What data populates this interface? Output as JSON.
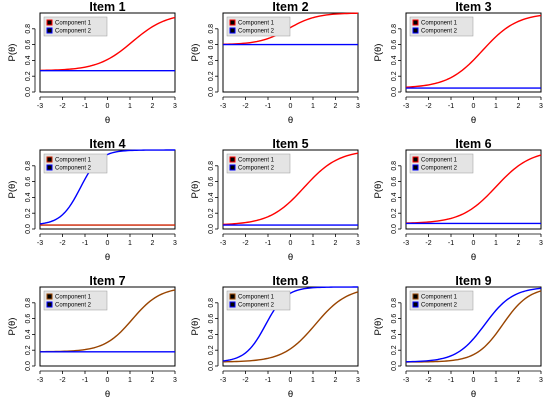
{
  "chart_data": [
    {
      "type": "line",
      "title": "Item  1",
      "xlabel": "θ",
      "ylabel": "P(θ)",
      "xlim": [
        -3,
        3
      ],
      "ylim": [
        0,
        1
      ],
      "xticks": [
        "-3",
        "-2",
        "-1",
        "0",
        "1",
        "2",
        "3"
      ],
      "yticks": [
        "0.0",
        "0.2",
        "0.4",
        "0.6",
        "0.8"
      ],
      "legend": "top-left",
      "series": [
        {
          "name": "Component 1",
          "color": "#ff0000",
          "lower": 0.27,
          "upper": 1.0,
          "a": 1.3,
          "b": 1.1
        },
        {
          "name": "Component 2",
          "color": "#0000ff",
          "lower": 0.27,
          "upper": 0.27,
          "a": 0,
          "b": 0
        }
      ]
    },
    {
      "type": "line",
      "title": "Item  2",
      "xlabel": "θ",
      "ylabel": "P(θ)",
      "xlim": [
        -3,
        3
      ],
      "ylim": [
        0,
        1
      ],
      "xticks": [
        "-3",
        "-2",
        "-1",
        "0",
        "1",
        "2",
        "3"
      ],
      "yticks": [
        "0.0",
        "0.2",
        "0.4",
        "0.6",
        "0.8"
      ],
      "legend": "top-left",
      "series": [
        {
          "name": "Component 1",
          "color": "#ff0000",
          "lower": 0.6,
          "upper": 1.0,
          "a": 1.6,
          "b": -0.1
        },
        {
          "name": "Component 2",
          "color": "#0000ff",
          "lower": 0.6,
          "upper": 0.6,
          "a": 0,
          "b": 0
        }
      ]
    },
    {
      "type": "line",
      "title": "Item  3",
      "xlabel": "θ",
      "ylabel": "P(θ)",
      "xlim": [
        -3,
        3
      ],
      "ylim": [
        0,
        1
      ],
      "xticks": [
        "-3",
        "-2",
        "-1",
        "0",
        "1",
        "2",
        "3"
      ],
      "yticks": [
        "0.0",
        "0.2",
        "0.4",
        "0.6",
        "0.8"
      ],
      "legend": "top-left",
      "series": [
        {
          "name": "Component 1",
          "color": "#ff0000",
          "lower": 0.05,
          "upper": 1.0,
          "a": 1.3,
          "b": 0.4
        },
        {
          "name": "Component 2",
          "color": "#0000ff",
          "lower": 0.05,
          "upper": 0.05,
          "a": 0,
          "b": 0
        }
      ]
    },
    {
      "type": "line",
      "title": "Item  4",
      "xlabel": "θ",
      "ylabel": "P(θ)",
      "xlim": [
        -3,
        3
      ],
      "ylim": [
        0,
        1
      ],
      "xticks": [
        "-3",
        "-2",
        "-1",
        "0",
        "1",
        "2",
        "3"
      ],
      "yticks": [
        "0.0",
        "0.2",
        "0.4",
        "0.6",
        "0.8"
      ],
      "legend": "top-left",
      "series": [
        {
          "name": "Component 1",
          "color": "#cc2200",
          "lower": 0.05,
          "upper": 0.05,
          "a": 0,
          "b": 0
        },
        {
          "name": "Component 2",
          "color": "#0000ff",
          "lower": 0.05,
          "upper": 1.0,
          "a": 2.3,
          "b": -1.2
        }
      ]
    },
    {
      "type": "line",
      "title": "Item  5",
      "xlabel": "θ",
      "ylabel": "P(θ)",
      "xlim": [
        -3,
        3
      ],
      "ylim": [
        0,
        1
      ],
      "xticks": [
        "-3",
        "-2",
        "-1",
        "0",
        "1",
        "2",
        "3"
      ],
      "yticks": [
        "0.0",
        "0.2",
        "0.4",
        "0.6",
        "0.8"
      ],
      "legend": "top-left",
      "series": [
        {
          "name": "Component 1",
          "color": "#ff0000",
          "lower": 0.05,
          "upper": 1.0,
          "a": 1.3,
          "b": 0.6
        },
        {
          "name": "Component 2",
          "color": "#0000ff",
          "lower": 0.05,
          "upper": 0.05,
          "a": 0,
          "b": 0
        }
      ]
    },
    {
      "type": "line",
      "title": "Item  6",
      "xlabel": "θ",
      "ylabel": "P(θ)",
      "xlim": [
        -3,
        3
      ],
      "ylim": [
        0,
        1
      ],
      "xticks": [
        "-3",
        "-2",
        "-1",
        "0",
        "1",
        "2",
        "3"
      ],
      "yticks": [
        "0.0",
        "0.2",
        "0.4",
        "0.6",
        "0.8"
      ],
      "legend": "top-left",
      "series": [
        {
          "name": "Component 1",
          "color": "#ff0000",
          "lower": 0.07,
          "upper": 1.0,
          "a": 1.3,
          "b": 1.0
        },
        {
          "name": "Component 2",
          "color": "#0000ff",
          "lower": 0.07,
          "upper": 0.07,
          "a": 0,
          "b": 0
        }
      ]
    },
    {
      "type": "line",
      "title": "Item  7",
      "xlabel": "θ",
      "ylabel": "P(θ)",
      "xlim": [
        -3,
        3
      ],
      "ylim": [
        0,
        1
      ],
      "xticks": [
        "-3",
        "-2",
        "-1",
        "0",
        "1",
        "2",
        "3"
      ],
      "yticks": [
        "0.0",
        "0.2",
        "0.4",
        "0.6",
        "0.8"
      ],
      "legend": "top-left",
      "series": [
        {
          "name": "Component 1",
          "color": "#994400",
          "lower": 0.18,
          "upper": 1.0,
          "a": 1.6,
          "b": 1.1
        },
        {
          "name": "Component 2",
          "color": "#0000ff",
          "lower": 0.18,
          "upper": 0.18,
          "a": 0,
          "b": 0
        }
      ]
    },
    {
      "type": "line",
      "title": "Item  8",
      "xlabel": "θ",
      "ylabel": "P(θ)",
      "xlim": [
        -3,
        3
      ],
      "ylim": [
        0,
        1
      ],
      "xticks": [
        "-3",
        "-2",
        "-1",
        "0",
        "1",
        "2",
        "3"
      ],
      "yticks": [
        "0.0",
        "0.2",
        "0.4",
        "0.6",
        "0.8"
      ],
      "legend": "top-left",
      "series": [
        {
          "name": "Component 1",
          "color": "#994400",
          "lower": 0.05,
          "upper": 1.0,
          "a": 1.4,
          "b": 1.1
        },
        {
          "name": "Component 2",
          "color": "#0000ff",
          "lower": 0.05,
          "upper": 1.0,
          "a": 2.2,
          "b": -1.1
        }
      ]
    },
    {
      "type": "line",
      "title": "Item  9",
      "xlabel": "θ",
      "ylabel": "P(θ)",
      "xlim": [
        -3,
        3
      ],
      "ylim": [
        0,
        1
      ],
      "xticks": [
        "-3",
        "-2",
        "-1",
        "0",
        "1",
        "2",
        "3"
      ],
      "yticks": [
        "0.0",
        "0.2",
        "0.4",
        "0.6",
        "0.8"
      ],
      "legend": "top-left",
      "series": [
        {
          "name": "Component 1",
          "color": "#994400",
          "lower": 0.05,
          "upper": 1.0,
          "a": 1.7,
          "b": 1.3
        },
        {
          "name": "Component 2",
          "color": "#0000ff",
          "lower": 0.05,
          "upper": 1.0,
          "a": 1.6,
          "b": 0.5
        }
      ]
    }
  ]
}
